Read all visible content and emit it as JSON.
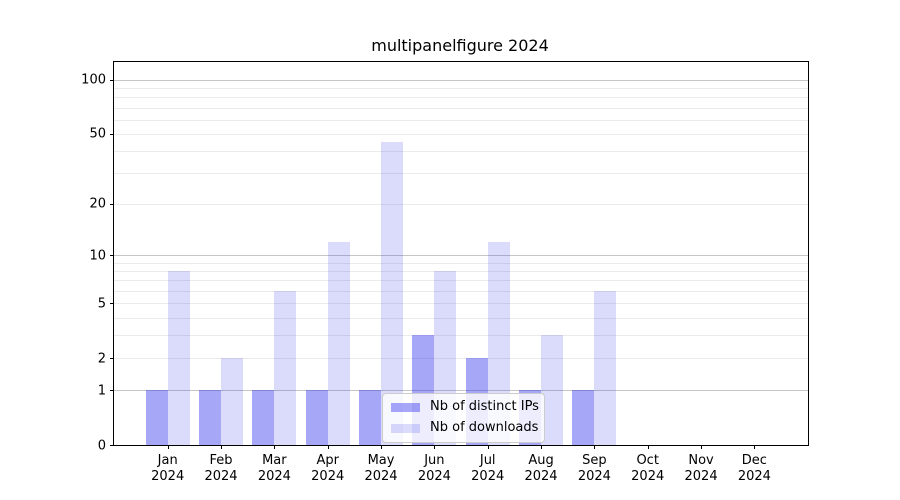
{
  "title": "multipanelfigure 2024",
  "colors": {
    "background": "#ffffff",
    "spine": "#000000",
    "text": "#000000",
    "grid_minor": "#ebebeb",
    "grid_major": "#c6c6c6",
    "legend_border": "#cccccc",
    "bar_base": "#2222ee"
  },
  "chart_data": {
    "type": "bar",
    "title": "multipanelfigure 2024",
    "categories": [
      "Jan",
      "Feb",
      "Mar",
      "Apr",
      "May",
      "Jun",
      "Jul",
      "Aug",
      "Sep",
      "Oct",
      "Nov",
      "Dec"
    ],
    "x_tick_line2": "2024",
    "series": [
      {
        "name": "Nb of distinct IPs",
        "color": "#2222ee",
        "alpha": 0.4,
        "values": [
          1,
          1,
          1,
          1,
          1,
          3,
          2,
          1,
          1,
          0,
          0,
          0
        ]
      },
      {
        "name": "Nb of downloads",
        "color": "#2222ee",
        "alpha": 0.16,
        "values": [
          8,
          2,
          6,
          12,
          45,
          8,
          12,
          3,
          6,
          0,
          0,
          0
        ]
      }
    ],
    "xlabel": "",
    "ylabel": "",
    "yscale": "log1p",
    "ylim": [
      0,
      126
    ],
    "yticks": [
      0,
      1,
      2,
      5,
      10,
      20,
      50,
      100
    ],
    "minor_gridlines": [
      2,
      3,
      4,
      5,
      6,
      7,
      8,
      9,
      20,
      30,
      40,
      50,
      60,
      70,
      80,
      90
    ],
    "major_gridlines": [
      1,
      10,
      100
    ],
    "grid": true,
    "legend_position": "lower center"
  }
}
